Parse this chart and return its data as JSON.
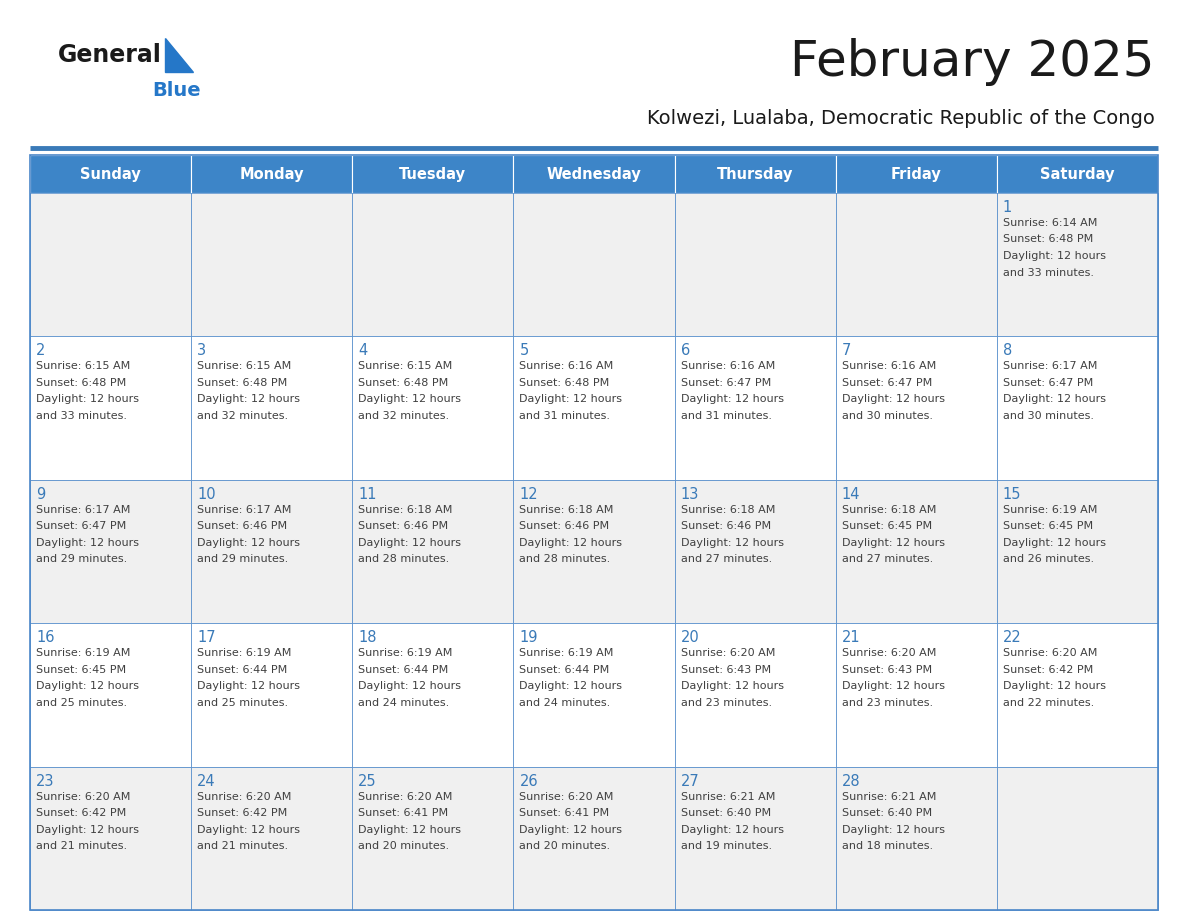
{
  "title": "February 2025",
  "subtitle": "Kolwezi, Lualaba, Democratic Republic of the Congo",
  "days_of_week": [
    "Sunday",
    "Monday",
    "Tuesday",
    "Wednesday",
    "Thursday",
    "Friday",
    "Saturday"
  ],
  "header_bg": "#3d85c8",
  "header_text": "#ffffff",
  "row_bg_light": "#f0f0f0",
  "row_bg_white": "#ffffff",
  "cell_border": "#4a86c8",
  "day_number_color": "#3a7ab8",
  "info_color": "#404040",
  "title_color": "#1a1a1a",
  "subtitle_color": "#1a1a1a",
  "logo_general_color": "#1a1a1a",
  "logo_blue_color": "#2577c8",
  "separator_color": "#3a7ab8",
  "calendar_data": [
    {
      "day": 1,
      "col": 6,
      "row": 0,
      "sunrise": "6:14 AM",
      "sunset": "6:48 PM",
      "daylight": "12 hours and 33 minutes"
    },
    {
      "day": 2,
      "col": 0,
      "row": 1,
      "sunrise": "6:15 AM",
      "sunset": "6:48 PM",
      "daylight": "12 hours and 33 minutes"
    },
    {
      "day": 3,
      "col": 1,
      "row": 1,
      "sunrise": "6:15 AM",
      "sunset": "6:48 PM",
      "daylight": "12 hours and 32 minutes"
    },
    {
      "day": 4,
      "col": 2,
      "row": 1,
      "sunrise": "6:15 AM",
      "sunset": "6:48 PM",
      "daylight": "12 hours and 32 minutes"
    },
    {
      "day": 5,
      "col": 3,
      "row": 1,
      "sunrise": "6:16 AM",
      "sunset": "6:48 PM",
      "daylight": "12 hours and 31 minutes"
    },
    {
      "day": 6,
      "col": 4,
      "row": 1,
      "sunrise": "6:16 AM",
      "sunset": "6:47 PM",
      "daylight": "12 hours and 31 minutes"
    },
    {
      "day": 7,
      "col": 5,
      "row": 1,
      "sunrise": "6:16 AM",
      "sunset": "6:47 PM",
      "daylight": "12 hours and 30 minutes"
    },
    {
      "day": 8,
      "col": 6,
      "row": 1,
      "sunrise": "6:17 AM",
      "sunset": "6:47 PM",
      "daylight": "12 hours and 30 minutes"
    },
    {
      "day": 9,
      "col": 0,
      "row": 2,
      "sunrise": "6:17 AM",
      "sunset": "6:47 PM",
      "daylight": "12 hours and 29 minutes"
    },
    {
      "day": 10,
      "col": 1,
      "row": 2,
      "sunrise": "6:17 AM",
      "sunset": "6:46 PM",
      "daylight": "12 hours and 29 minutes"
    },
    {
      "day": 11,
      "col": 2,
      "row": 2,
      "sunrise": "6:18 AM",
      "sunset": "6:46 PM",
      "daylight": "12 hours and 28 minutes"
    },
    {
      "day": 12,
      "col": 3,
      "row": 2,
      "sunrise": "6:18 AM",
      "sunset": "6:46 PM",
      "daylight": "12 hours and 28 minutes"
    },
    {
      "day": 13,
      "col": 4,
      "row": 2,
      "sunrise": "6:18 AM",
      "sunset": "6:46 PM",
      "daylight": "12 hours and 27 minutes"
    },
    {
      "day": 14,
      "col": 5,
      "row": 2,
      "sunrise": "6:18 AM",
      "sunset": "6:45 PM",
      "daylight": "12 hours and 27 minutes"
    },
    {
      "day": 15,
      "col": 6,
      "row": 2,
      "sunrise": "6:19 AM",
      "sunset": "6:45 PM",
      "daylight": "12 hours and 26 minutes"
    },
    {
      "day": 16,
      "col": 0,
      "row": 3,
      "sunrise": "6:19 AM",
      "sunset": "6:45 PM",
      "daylight": "12 hours and 25 minutes"
    },
    {
      "day": 17,
      "col": 1,
      "row": 3,
      "sunrise": "6:19 AM",
      "sunset": "6:44 PM",
      "daylight": "12 hours and 25 minutes"
    },
    {
      "day": 18,
      "col": 2,
      "row": 3,
      "sunrise": "6:19 AM",
      "sunset": "6:44 PM",
      "daylight": "12 hours and 24 minutes"
    },
    {
      "day": 19,
      "col": 3,
      "row": 3,
      "sunrise": "6:19 AM",
      "sunset": "6:44 PM",
      "daylight": "12 hours and 24 minutes"
    },
    {
      "day": 20,
      "col": 4,
      "row": 3,
      "sunrise": "6:20 AM",
      "sunset": "6:43 PM",
      "daylight": "12 hours and 23 minutes"
    },
    {
      "day": 21,
      "col": 5,
      "row": 3,
      "sunrise": "6:20 AM",
      "sunset": "6:43 PM",
      "daylight": "12 hours and 23 minutes"
    },
    {
      "day": 22,
      "col": 6,
      "row": 3,
      "sunrise": "6:20 AM",
      "sunset": "6:42 PM",
      "daylight": "12 hours and 22 minutes"
    },
    {
      "day": 23,
      "col": 0,
      "row": 4,
      "sunrise": "6:20 AM",
      "sunset": "6:42 PM",
      "daylight": "12 hours and 21 minutes"
    },
    {
      "day": 24,
      "col": 1,
      "row": 4,
      "sunrise": "6:20 AM",
      "sunset": "6:42 PM",
      "daylight": "12 hours and 21 minutes"
    },
    {
      "day": 25,
      "col": 2,
      "row": 4,
      "sunrise": "6:20 AM",
      "sunset": "6:41 PM",
      "daylight": "12 hours and 20 minutes"
    },
    {
      "day": 26,
      "col": 3,
      "row": 4,
      "sunrise": "6:20 AM",
      "sunset": "6:41 PM",
      "daylight": "12 hours and 20 minutes"
    },
    {
      "day": 27,
      "col": 4,
      "row": 4,
      "sunrise": "6:21 AM",
      "sunset": "6:40 PM",
      "daylight": "12 hours and 19 minutes"
    },
    {
      "day": 28,
      "col": 5,
      "row": 4,
      "sunrise": "6:21 AM",
      "sunset": "6:40 PM",
      "daylight": "12 hours and 18 minutes"
    }
  ],
  "num_rows": 5,
  "num_cols": 7
}
